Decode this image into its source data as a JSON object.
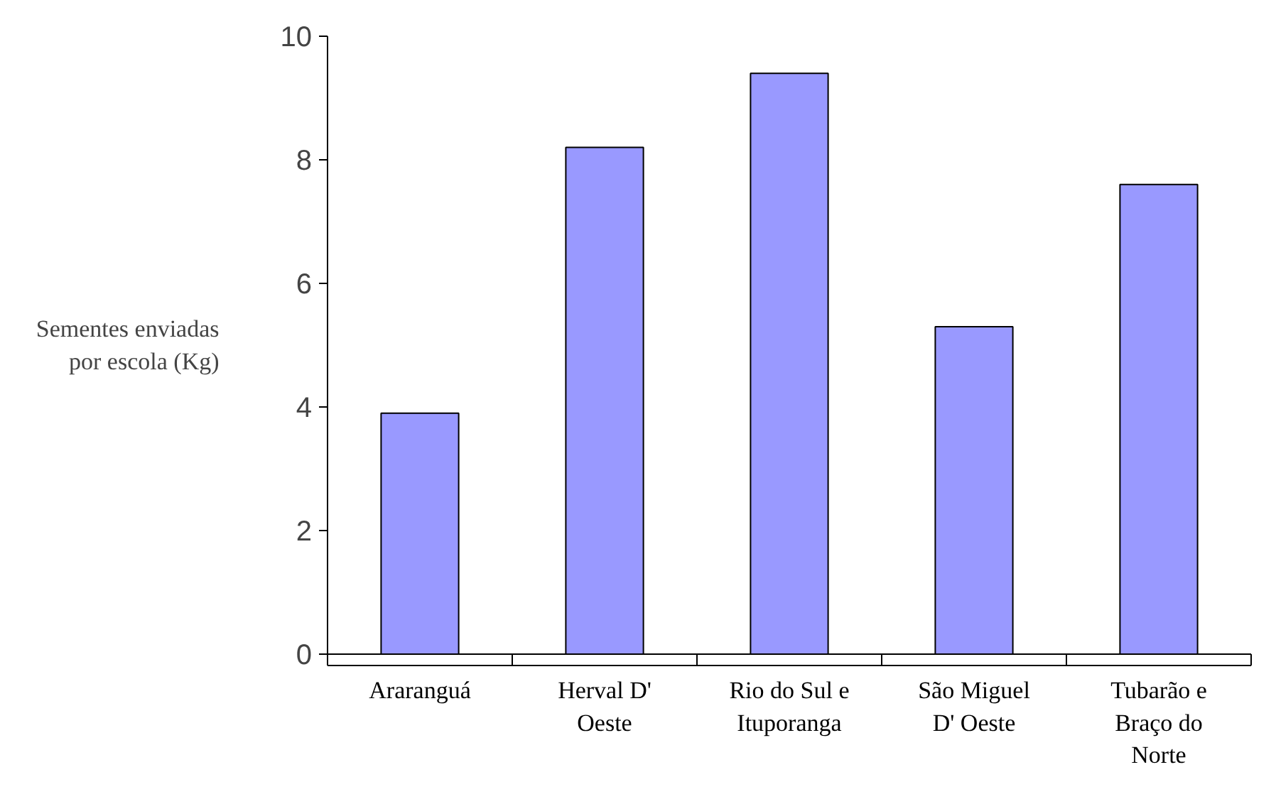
{
  "chart_data": {
    "type": "bar",
    "ylabel": "Sementes enviadas por escola (Kg)",
    "categories": [
      "Araranguá",
      "Herval D' Oeste",
      "Rio do Sul e Ituporanga",
      "São Miguel D' Oeste",
      "Tubarão e Braço do Norte"
    ],
    "values": [
      3.9,
      8.2,
      9.4,
      5.3,
      7.6
    ],
    "color": "#9999ff",
    "ylim": [
      0,
      10
    ],
    "yticks": [
      0,
      2,
      4,
      6,
      8,
      10
    ],
    "grid": false
  }
}
